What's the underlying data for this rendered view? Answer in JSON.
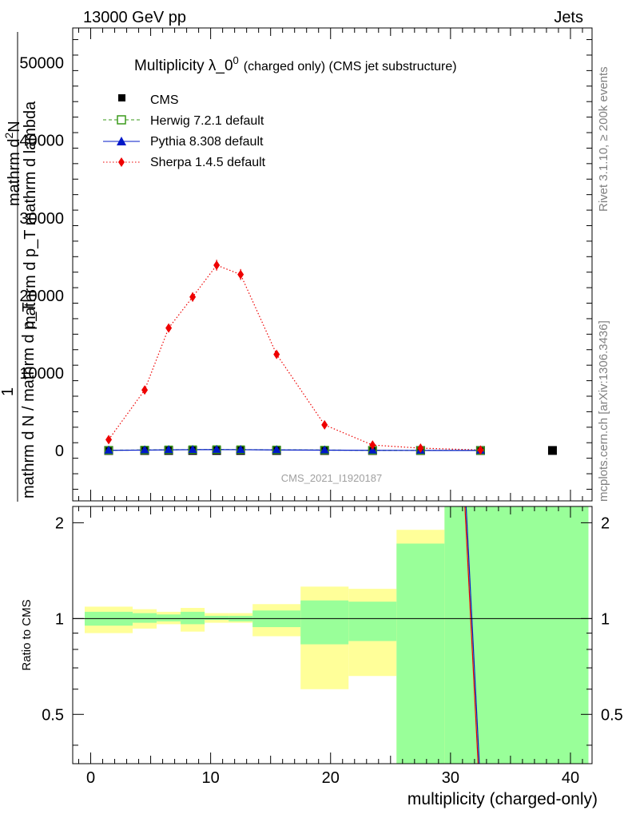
{
  "header": {
    "energy": "13000 GeV pp",
    "category": "Jets"
  },
  "side_labels": {
    "rivet": "Rivet 3.1.10, ≥ 200k events",
    "mcplots": "mcplots.cern.ch [arXiv:1306.3436]"
  },
  "watermark": "CMS_2021_I1920187",
  "chart_data": [
    {
      "type": "line",
      "title": "Multiplicity λ_0",
      "title_sup": "0",
      "title_suffix": "(charged only) (CMS jet substructure)",
      "ylabel_numerator": "mathrm d²N",
      "ylabel_numerator_main": "mathrm d",
      "ylabel_numerator_sup": "2",
      "ylabel_numerator_tail": "N",
      "ylabel_denominator": "mathrm d p_T mathrm d lambda",
      "ylabel_one": "1",
      "ylabel_norm": "mathrm d N / mathrm d p_T",
      "ylim": [
        -6500,
        54500
      ],
      "yticks": [
        0,
        10000,
        20000,
        30000,
        40000,
        50000
      ],
      "ytick_labels": [
        "0",
        "10000",
        "20000",
        "30000",
        "40000",
        "50000"
      ],
      "legend_position": "top-left",
      "series": [
        {
          "name": "CMS",
          "style": "marker",
          "color": "#000000",
          "x": [
            1.5,
            4.5,
            6.5,
            8.5,
            10.5,
            12.5,
            15.5,
            19.5,
            23.5,
            27.5,
            32.5,
            38.5
          ],
          "y": [
            0,
            0,
            0,
            0,
            0,
            0,
            0,
            0,
            0,
            0,
            0,
            0
          ]
        },
        {
          "name": "Herwig 7.2.1 default",
          "style": "dashed",
          "color": "#3a9a1a",
          "x": [
            1.5,
            4.5,
            6.5,
            8.5,
            10.5,
            12.5,
            15.5,
            19.5,
            23.5,
            27.5,
            32.5
          ],
          "y": [
            30,
            60,
            90,
            110,
            120,
            110,
            80,
            50,
            20,
            8,
            2
          ]
        },
        {
          "name": "Pythia 8.308 default",
          "style": "solid",
          "color": "#0018c8",
          "x": [
            1.5,
            4.5,
            6.5,
            8.5,
            10.5,
            12.5,
            15.5,
            19.5,
            23.5,
            27.5,
            32.5
          ],
          "y": [
            20,
            50,
            80,
            100,
            110,
            100,
            70,
            40,
            15,
            6,
            1
          ]
        },
        {
          "name": "Sherpa 1.4.5 default",
          "style": "dotted",
          "color": "#ee0000",
          "x": [
            1.5,
            4.5,
            6.5,
            8.5,
            10.5,
            12.5,
            15.5,
            19.5,
            23.5,
            27.5,
            32.5
          ],
          "y": [
            1400,
            7800,
            15800,
            19800,
            23900,
            22700,
            12400,
            3300,
            700,
            300,
            60
          ],
          "err": [
            400,
            400,
            500,
            600,
            700,
            700,
            400,
            200,
            100,
            50,
            20
          ]
        }
      ]
    },
    {
      "type": "area",
      "ylabel": "Ratio to CMS",
      "xlabel": "multiplicity (charged-only)",
      "xlim": [
        -1.5,
        41.8
      ],
      "ylim": [
        0.35,
        2.25
      ],
      "xticks": [
        0,
        10,
        20,
        30,
        40
      ],
      "xtick_labels": [
        "0",
        "10",
        "20",
        "30",
        "40"
      ],
      "yticks": [
        0.5,
        1,
        2
      ],
      "ytick_labels": [
        "0.5",
        "1",
        "2"
      ],
      "bands": {
        "edges": [
          -0.5,
          3.5,
          5.5,
          7.5,
          9.5,
          11.5,
          13.5,
          17.5,
          21.5,
          25.5,
          29.5,
          41.5
        ],
        "yellow_lo": [
          0.9,
          0.93,
          0.96,
          0.91,
          0.97,
          0.97,
          0.88,
          0.6,
          0.66,
          0.3,
          0.3
        ],
        "yellow_hi": [
          1.09,
          1.07,
          1.05,
          1.08,
          1.04,
          1.04,
          1.11,
          1.26,
          1.24,
          1.9,
          2.4
        ],
        "green_lo": [
          0.95,
          0.97,
          0.98,
          0.96,
          0.99,
          0.98,
          0.94,
          0.83,
          0.85,
          0.3,
          0.3
        ],
        "green_hi": [
          1.05,
          1.04,
          1.03,
          1.05,
          1.02,
          1.02,
          1.06,
          1.14,
          1.13,
          1.72,
          2.4
        ]
      },
      "lines": [
        {
          "name": "Pythia ratio",
          "color": "#0018c8",
          "x": [
            31.3,
            32.4
          ],
          "y": [
            2.4,
            0.3
          ]
        },
        {
          "name": "Sherpa ratio",
          "color": "#ee0000",
          "x": [
            31.2,
            32.3
          ],
          "y": [
            2.4,
            0.3
          ]
        }
      ]
    }
  ]
}
